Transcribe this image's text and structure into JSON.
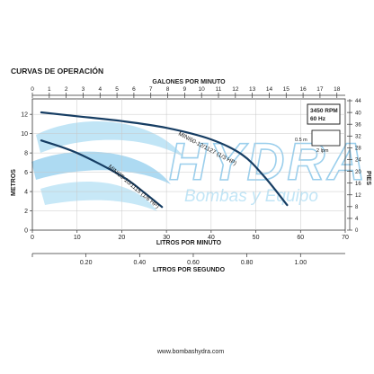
{
  "heading": "CURVAS DE OPERACIÓN",
  "watermark": {
    "brand": "HYDRA",
    "tagline": "Bombas y Equipo",
    "color": "#4aa8de"
  },
  "footer_url": "www.bombashydra.com",
  "colors": {
    "curve": "#163d63",
    "axis": "#333333",
    "grid": "#c8c8c8"
  },
  "chart_data": {
    "type": "line",
    "title": "CURVAS DE OPERACIÓN",
    "xlabel_bottom": "LITROS POR MINUTO",
    "xlabel_top": "GALONES POR MINUTO",
    "xlabel_bottom2": "LITROS POR SEGUNDO",
    "ylabel_left": "METROS",
    "ylabel_right": "PIES",
    "xlim": [
      0,
      70
    ],
    "ylim": [
      0,
      13.6
    ],
    "x_ticks": [
      0,
      10,
      20,
      30,
      40,
      50,
      60,
      70
    ],
    "y_ticks": [
      0,
      2,
      4,
      6,
      8,
      10,
      12
    ],
    "top_ticks": [
      0,
      1,
      2,
      3,
      4,
      5,
      6,
      7,
      8,
      9,
      10,
      11,
      12,
      13,
      14,
      15,
      16,
      17,
      18
    ],
    "right_ticks": [
      0,
      4,
      8,
      12,
      16,
      20,
      24,
      28,
      32,
      36,
      40,
      44
    ],
    "lps_ticks": [
      "0.20",
      "0.40",
      "0.60",
      "0.80",
      "1.00"
    ],
    "lps_values": [
      0.2,
      0.4,
      0.6,
      0.8,
      1.0
    ],
    "grid": true,
    "info_box": {
      "line1": "3450 RPM",
      "line2": "60 Hz"
    },
    "scale_box": {
      "height_label": "0.5 m",
      "width_label": "2 lpm"
    },
    "series": [
      {
        "name": "MINI60-12/1127 (1/3 HP)",
        "x": [
          2,
          10,
          20,
          30,
          40,
          47,
          52,
          57
        ],
        "y": [
          12.2,
          11.8,
          11.3,
          10.6,
          9.4,
          7.8,
          5.5,
          2.6
        ]
      },
      {
        "name": "MINI25-10/1115 (1/6 HP)",
        "x": [
          2,
          10,
          20,
          25,
          29
        ],
        "y": [
          9.3,
          8.0,
          5.6,
          3.9,
          2.4
        ]
      }
    ]
  }
}
